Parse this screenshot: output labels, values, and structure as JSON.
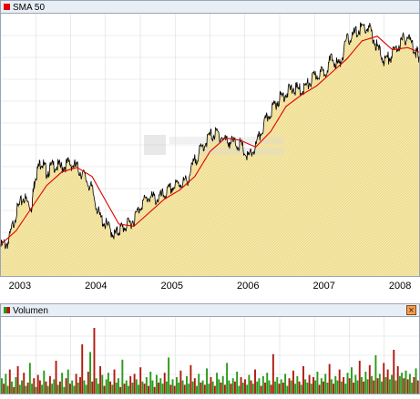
{
  "legend_price": {
    "label": "SMA 50",
    "color": "#e00000"
  },
  "legend_volume": {
    "label": "Volumen",
    "color_up": "#2a9a1a",
    "color_down": "#b01a10"
  },
  "close_icon": {
    "glyph": "×",
    "name": "close-icon"
  },
  "watermark": {
    "icon": "chart-logo-icon"
  },
  "colors": {
    "price_line": "#000000",
    "sma_line": "#e00000",
    "area_fill": "#f7e9a6",
    "area_hatch": "#d9c98a",
    "grid": "#dcdcdc",
    "header_bg": "#e8eef5"
  },
  "chart_data": [
    {
      "type": "line",
      "title": "",
      "legend": [
        "SMA 50"
      ],
      "x_tick_labels": [
        "2003",
        "2004",
        "2005",
        "2006",
        "2007",
        "2008"
      ],
      "y_tick_labels": [],
      "grid": true,
      "legend_position": "top-left",
      "series": [
        {
          "name": "",
          "style": "area-line",
          "x": [
            2002.75,
            2002.85,
            2002.95,
            2003.05,
            2003.15,
            2003.2,
            2003.28,
            2003.35,
            2003.45,
            2003.55,
            2003.65,
            2003.75,
            2003.85,
            2003.95,
            2004.05,
            2004.15,
            2004.25,
            2004.32,
            2004.4,
            2004.5,
            2004.6,
            2004.7,
            2004.8,
            2004.9,
            2005.0,
            2005.1,
            2005.2,
            2005.3,
            2005.4,
            2005.5,
            2005.6,
            2005.7,
            2005.8,
            2005.9,
            2006.0,
            2006.1,
            2006.2,
            2006.3,
            2006.4,
            2006.5,
            2006.6,
            2006.7,
            2006.8,
            2006.9,
            2007.0,
            2007.1,
            2007.2,
            2007.3,
            2007.4,
            2007.5,
            2007.6,
            2007.7,
            2007.8,
            2007.9,
            2008.0,
            2008.1,
            2008.2,
            2008.25
          ],
          "y": [
            13,
            15,
            28,
            35,
            30,
            44,
            51,
            46,
            49,
            48,
            50,
            48,
            44,
            38,
            26,
            22,
            18,
            21,
            22,
            25,
            32,
            35,
            34,
            36,
            39,
            41,
            42,
            51,
            57,
            62,
            63,
            60,
            59,
            58,
            52,
            57,
            66,
            73,
            78,
            81,
            83,
            82,
            85,
            89,
            90,
            96,
            93,
            104,
            107,
            110,
            109,
            101,
            95,
            98,
            103,
            106,
            100,
            97
          ]
        },
        {
          "name": "SMA 50",
          "style": "line",
          "x": [
            2002.75,
            2002.95,
            2003.15,
            2003.35,
            2003.55,
            2003.75,
            2003.95,
            2004.15,
            2004.3,
            2004.5,
            2004.7,
            2004.9,
            2005.1,
            2005.3,
            2005.5,
            2005.7,
            2005.9,
            2006.1,
            2006.3,
            2006.5,
            2006.7,
            2006.9,
            2007.1,
            2007.3,
            2007.5,
            2007.7,
            2007.9,
            2008.1,
            2008.25
          ],
          "y": [
            14,
            20,
            30,
            40,
            46,
            48,
            44,
            32,
            23,
            22,
            28,
            34,
            38,
            44,
            55,
            61,
            60,
            57,
            64,
            75,
            80,
            84,
            90,
            96,
            104,
            106,
            100,
            101,
            99
          ]
        }
      ]
    },
    {
      "type": "bar",
      "title": "",
      "legend": [
        "Volumen"
      ],
      "x_tick_labels": [],
      "y_tick_labels": [],
      "grid": true,
      "legend_position": "top-left",
      "series": [
        {
          "name": "Volumen",
          "x_start": 2002.75,
          "x_end": 2008.25,
          "values": [
            14,
            9,
            18,
            7,
            22,
            11,
            6,
            15,
            25,
            8,
            12,
            19,
            7,
            10,
            28,
            9,
            14,
            6,
            17,
            12,
            8,
            21,
            11,
            7,
            16,
            9,
            13,
            30,
            8,
            11,
            19,
            6,
            14,
            22,
            9,
            12,
            7,
            18,
            10,
            15,
            45,
            12,
            8,
            20,
            38,
            11,
            60,
            14,
            9,
            25,
            17,
            7,
            13,
            19,
            11,
            8,
            22,
            10,
            14,
            6,
            31,
            9,
            12,
            7,
            16,
            10,
            18,
            13,
            8,
            24,
            11,
            9,
            15,
            7,
            20,
            12,
            6,
            17,
            10,
            14,
            9,
            19,
            11,
            33,
            8,
            13,
            7,
            15,
            10,
            21,
            12,
            8,
            16,
            9,
            26,
            11,
            14,
            7,
            18,
            10,
            12,
            8,
            23,
            9,
            15,
            11,
            7,
            19,
            13,
            10,
            16,
            8,
            28,
            12,
            9,
            14,
            11,
            20,
            7,
            15,
            10,
            13,
            8,
            17,
            12,
            9,
            22,
            11,
            14,
            7,
            16,
            10,
            19,
            12,
            8,
            36,
            11,
            15,
            9,
            13,
            10,
            18,
            7,
            14,
            12,
            21,
            9,
            16,
            11,
            8,
            25,
            13,
            10,
            17,
            9,
            15,
            12,
            20,
            8,
            14,
            11,
            18,
            10,
            27,
            13,
            9,
            16,
            12,
            22,
            11,
            15,
            9,
            19,
            14,
            24,
            10,
            17,
            12,
            30,
            15,
            11,
            20,
            13,
            26,
            16,
            12,
            35,
            14,
            18,
            11,
            28,
            15,
            22,
            13,
            17,
            40,
            12,
            25,
            16,
            19,
            14,
            21,
            13,
            18,
            10,
            15,
            23,
            12
          ],
          "up": [
            1,
            0,
            1,
            1,
            0,
            1,
            0,
            1,
            0,
            1,
            1,
            0,
            1,
            0,
            1,
            1,
            0,
            1,
            0,
            0,
            1,
            1,
            0,
            1,
            0,
            1,
            1,
            0,
            1,
            0,
            1,
            1,
            0,
            1,
            0,
            1,
            1,
            0,
            1,
            0,
            0,
            1,
            1,
            0,
            1,
            0,
            0,
            1,
            1,
            0,
            1,
            0,
            1,
            1,
            0,
            1,
            0,
            1,
            1,
            0,
            1,
            0,
            1,
            1,
            0,
            1,
            0,
            1,
            1,
            0,
            1,
            0,
            1,
            0,
            1,
            1,
            0,
            1,
            0,
            1,
            1,
            0,
            1,
            1,
            0,
            1,
            0,
            1,
            1,
            0,
            1,
            0,
            1,
            1,
            0,
            1,
            0,
            1,
            1,
            0,
            1,
            0,
            1,
            1,
            0,
            1,
            0,
            1,
            1,
            0,
            1,
            0,
            1,
            1,
            0,
            1,
            0,
            1,
            1,
            0,
            1,
            0,
            1,
            1,
            0,
            1,
            0,
            1,
            1,
            0,
            1,
            0,
            1,
            1,
            0,
            0,
            1,
            1,
            0,
            1,
            0,
            1,
            1,
            0,
            1,
            0,
            1,
            1,
            0,
            1,
            0,
            1,
            1,
            0,
            1,
            0,
            1,
            1,
            0,
            1,
            0,
            1,
            1,
            0,
            1,
            0,
            1,
            1,
            0,
            1,
            0,
            1,
            1,
            0,
            1,
            0,
            1,
            1,
            0,
            1,
            0,
            1,
            1,
            0,
            1,
            0,
            1,
            0,
            1,
            1,
            0,
            1,
            0,
            1,
            1,
            0,
            1,
            0,
            1,
            1,
            0,
            1,
            0,
            1,
            1,
            0,
            1,
            0
          ]
        }
      ]
    }
  ]
}
